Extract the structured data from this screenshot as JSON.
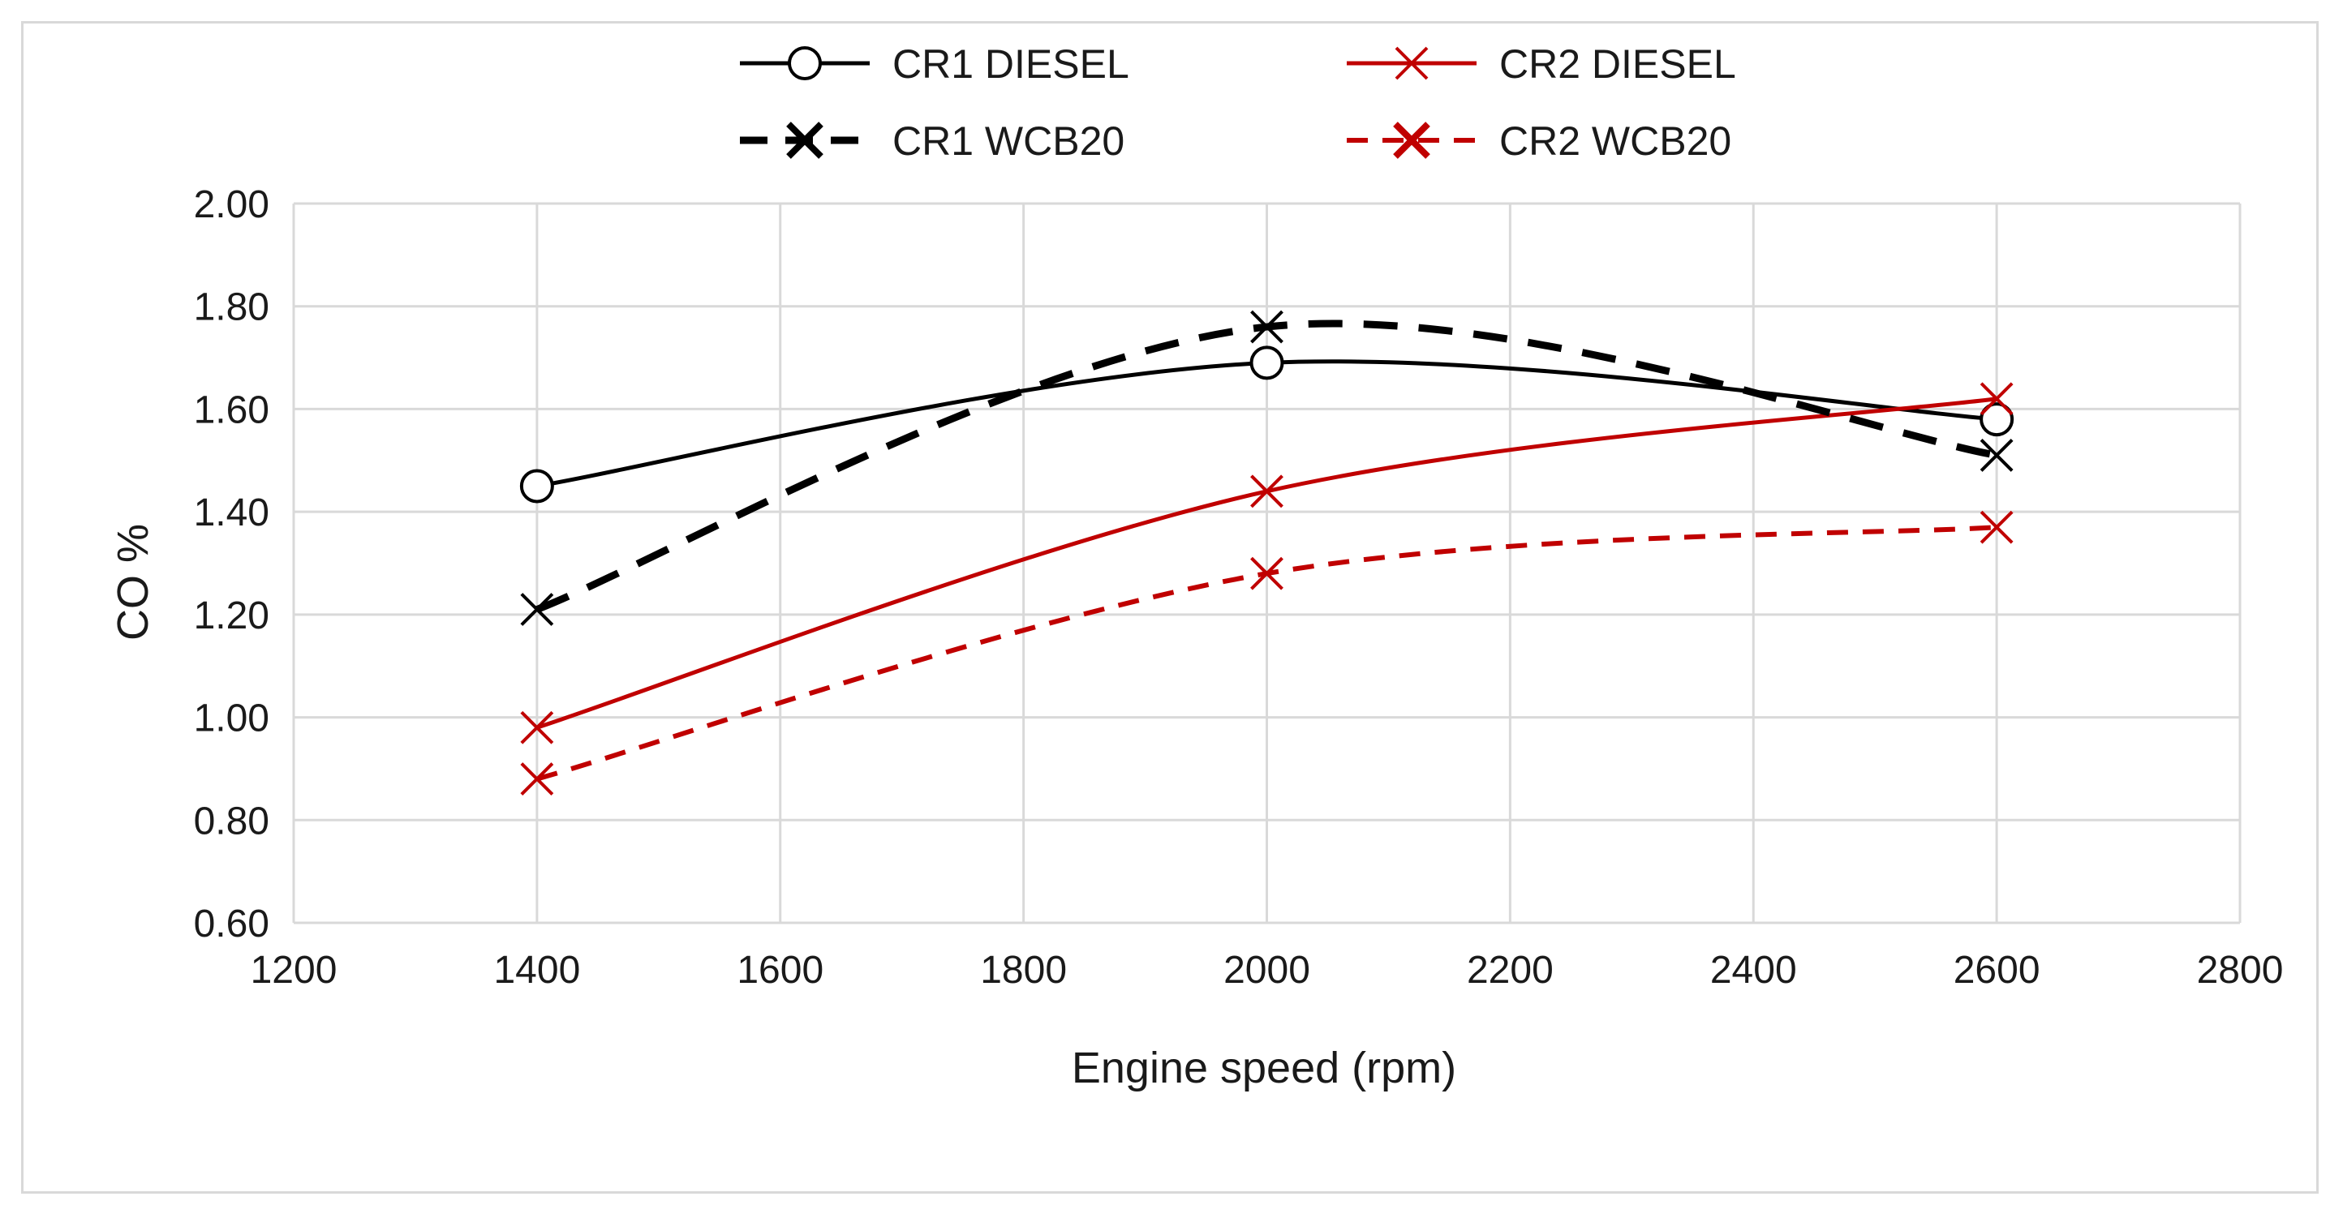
{
  "chart_data": {
    "type": "line",
    "title": "",
    "xlabel": "Engine speed (rpm)",
    "ylabel": "CO %",
    "xlim": [
      1200,
      2800
    ],
    "ylim": [
      0.6,
      2.0
    ],
    "xticks": [
      "1200",
      "1400",
      "1600",
      "1800",
      "2000",
      "2200",
      "2400",
      "2600",
      "2800"
    ],
    "yticks": [
      "0.60",
      "0.80",
      "1.00",
      "1.20",
      "1.40",
      "1.60",
      "1.80",
      "2.00"
    ],
    "grid": true,
    "legend_position": "top",
    "x": [
      1400,
      2000,
      2600
    ],
    "series": [
      {
        "name": "CR1 DIESEL",
        "values": [
          1.45,
          1.69,
          1.58
        ],
        "color": "#000000",
        "dash": "solid",
        "marker": "circle"
      },
      {
        "name": "CR2 DIESEL",
        "values": [
          0.98,
          1.44,
          1.62
        ],
        "color": "#c00000",
        "dash": "solid",
        "marker": "x"
      },
      {
        "name": "CR1 WCB20",
        "values": [
          1.21,
          1.76,
          1.51
        ],
        "color": "#000000",
        "dash": "dashed",
        "marker": "x"
      },
      {
        "name": "CR2 WCB20",
        "values": [
          0.88,
          1.28,
          1.37
        ],
        "color": "#c00000",
        "dash": "dashed",
        "marker": "x"
      }
    ]
  }
}
